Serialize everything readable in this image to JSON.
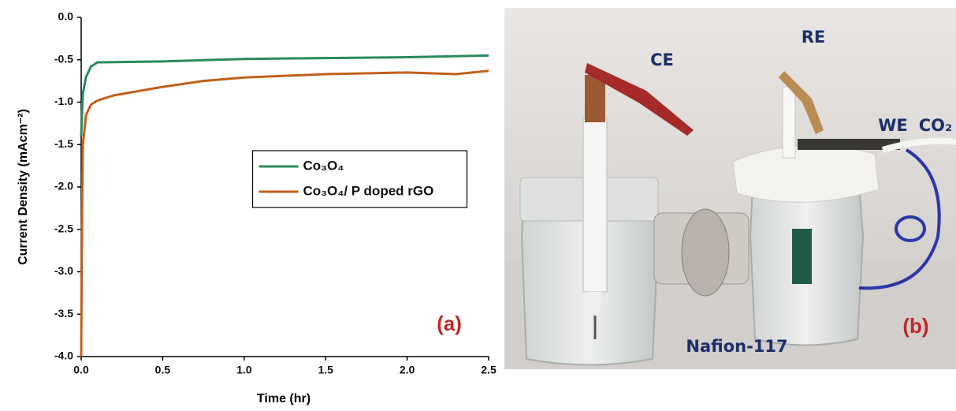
{
  "chart_data": {
    "type": "line",
    "x_label": "Time (hr)",
    "y_label": "Current Density (mAcm⁻²)",
    "annotation": "(a)",
    "legend": "center",
    "xlim": [
      0,
      2.5
    ],
    "ylim": [
      -4,
      0
    ],
    "xticks": [
      {
        "value": 0,
        "label": "0.0"
      },
      0.5,
      {
        "value": 1,
        "label": "1.0"
      },
      1.5,
      {
        "value": 2,
        "label": "2.0"
      },
      2.5
    ],
    "yticks": [
      {
        "value": 0,
        "label": "0.0"
      },
      -0.5,
      {
        "value": -1,
        "label": "-1.0"
      },
      -1.5,
      {
        "value": -2,
        "label": "-2.0"
      },
      -2.5,
      {
        "value": -3,
        "label": "-3.0"
      },
      -3.5,
      {
        "value": -4,
        "label": "-4.0"
      }
    ],
    "series": [
      {
        "name": "Co₃O₄",
        "color": "#2b8a5c",
        "x": [
          0,
          0.01,
          0.03,
          0.06,
          0.1,
          0.5,
          1.0,
          1.5,
          2.0,
          2.5
        ],
        "values": [
          -1.4,
          -0.9,
          -0.7,
          -0.58,
          -0.53,
          -0.52,
          -0.49,
          -0.48,
          -0.47,
          -0.45
        ]
      },
      {
        "name": "Co₃O₄/ P doped rGO",
        "color": "#c2601c",
        "x": [
          0,
          0.005,
          0.01,
          0.03,
          0.06,
          0.1,
          0.2,
          0.5,
          0.75,
          1.0,
          1.5,
          2.0,
          2.3,
          2.5
        ],
        "values": [
          -4.0,
          -2.5,
          -1.5,
          -1.15,
          -1.03,
          -0.98,
          -0.92,
          -0.82,
          -0.75,
          -0.71,
          -0.67,
          -0.65,
          -0.67,
          -0.63
        ]
      }
    ]
  },
  "photo": {
    "labels": [
      "CE",
      "RE",
      "WE",
      "CO₂",
      "Nafion-117"
    ],
    "annotation": "(b)"
  }
}
